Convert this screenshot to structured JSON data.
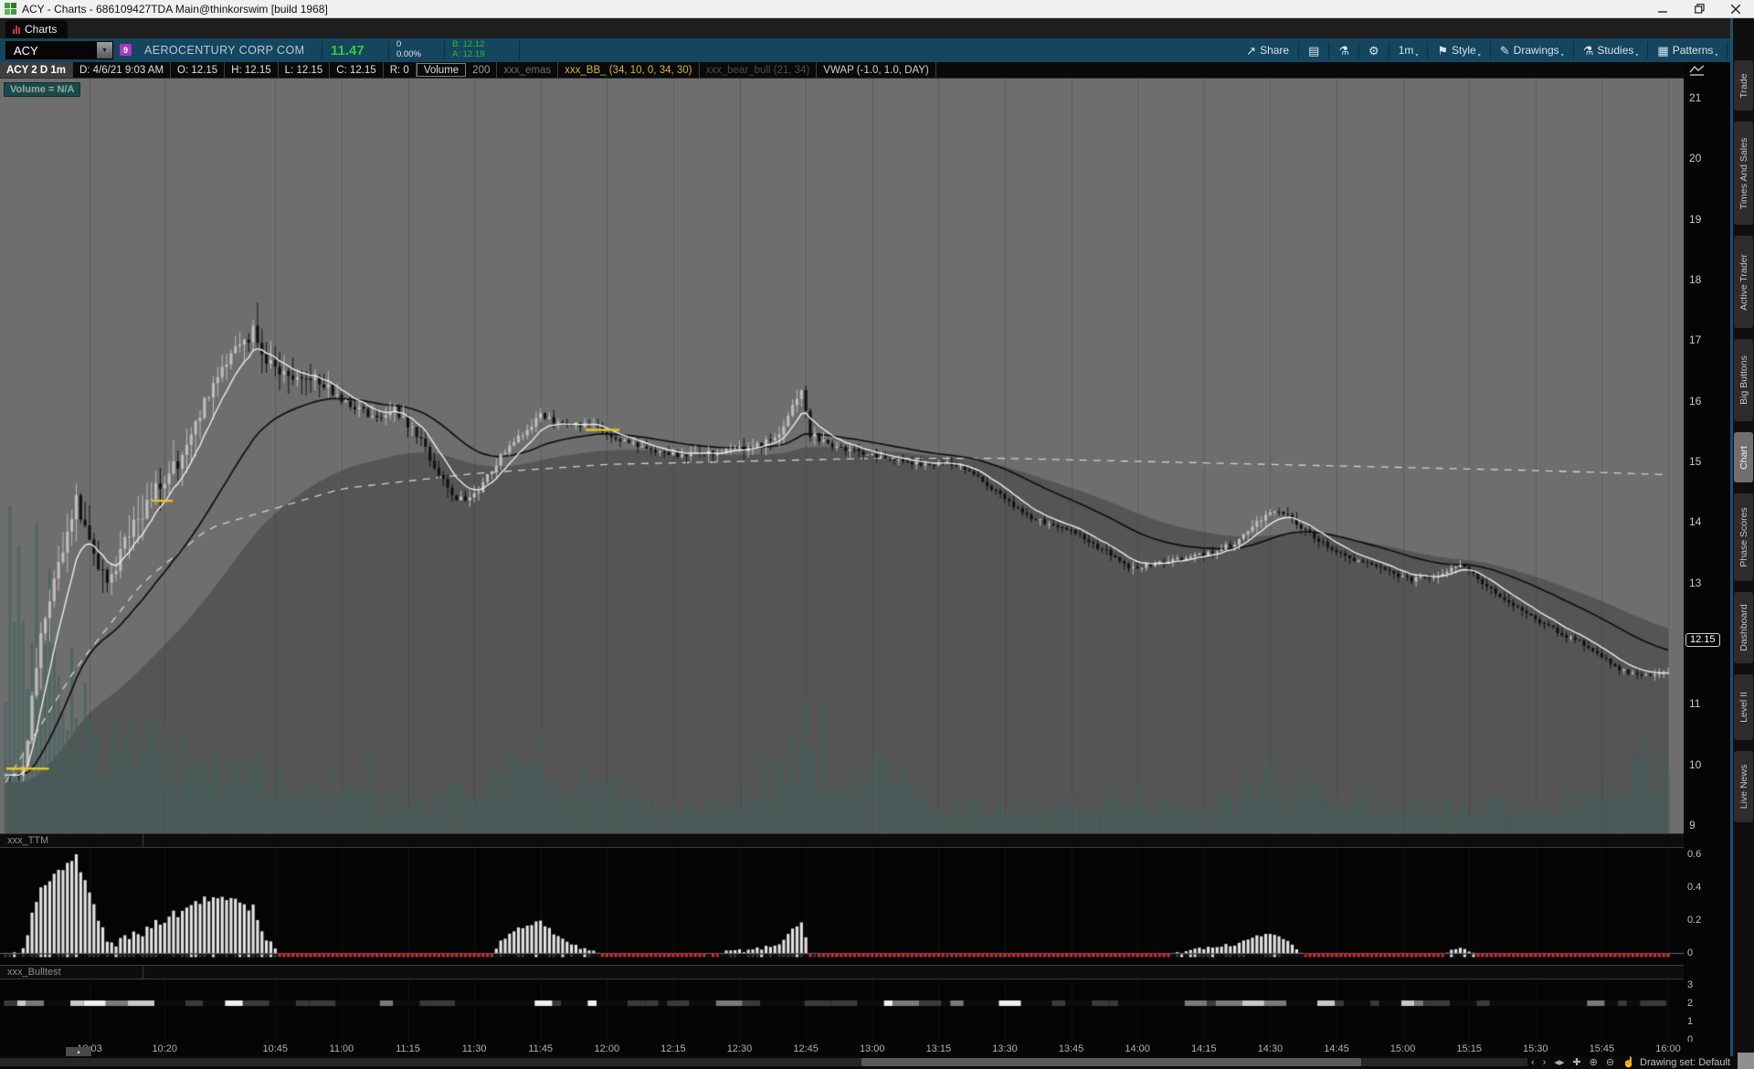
{
  "window": {
    "title": "ACY - Charts - 686109427TDA Main@thinkorswim [build 1968]"
  },
  "tab_bar": {
    "active_tab": "Charts"
  },
  "toolbar": {
    "symbol": "ACY",
    "symbol_badge": "9",
    "company": "AEROCENTURY CORP COM",
    "last_price": "11.47",
    "change": "0",
    "change_percent": "0.00%",
    "bid": "B: 12.12",
    "ask": "A: 12.19",
    "buttons": [
      {
        "name": "share-button",
        "icon": "↗",
        "label": "Share",
        "caret": false
      },
      {
        "name": "monitor-note-button",
        "icon": "▤",
        "label": "",
        "caret": false
      },
      {
        "name": "quick-study-button",
        "icon": "⚗",
        "label": "",
        "caret": false
      },
      {
        "name": "chart-settings-button",
        "icon": "⚙",
        "label": "",
        "caret": false
      },
      {
        "name": "timeframe-button",
        "icon": "",
        "label": "1m",
        "caret": true
      },
      {
        "name": "style-button",
        "icon": "⚑",
        "label": "Style",
        "caret": true
      },
      {
        "name": "drawings-button",
        "icon": "✎",
        "label": "Drawings",
        "caret": true
      },
      {
        "name": "studies-button",
        "icon": "⚗",
        "label": "Studies",
        "caret": true
      },
      {
        "name": "patterns-button",
        "icon": "▦",
        "label": "Patterns",
        "caret": true
      },
      {
        "name": "chart-grid-menu-button",
        "icon": "≡",
        "label": "",
        "caret": false
      }
    ]
  },
  "ohlc_bar": {
    "cells": [
      {
        "text": "ACY 2 D 1m",
        "style": "title"
      },
      {
        "text": "D: 4/6/21 9:03 AM",
        "style": ""
      },
      {
        "text": "O: 12.15",
        "style": ""
      },
      {
        "text": "H: 12.15",
        "style": ""
      },
      {
        "text": "L: 12.15",
        "style": ""
      },
      {
        "text": "C: 12.15",
        "style": ""
      },
      {
        "text": "R: 0",
        "style": ""
      },
      {
        "text": "Volume",
        "style": "box"
      },
      {
        "text": "200",
        "style": "dim"
      },
      {
        "text": "xxx_emas",
        "style": "faint"
      },
      {
        "text": "xxx_BB_ (34, 10, 0, 34, 30)",
        "style": "yellow"
      },
      {
        "text": "xxx_bear_bull (21, 34)",
        "style": "ghost"
      },
      {
        "text": "VWAP (-1.0, 1.0, DAY)",
        "style": "light"
      }
    ]
  },
  "chart": {
    "volume_badge": "Volume = N/A",
    "last_price_label": "12.15"
  },
  "panels": {
    "ttm": {
      "label": "xxx_TTM"
    },
    "bulltest": {
      "label": "xxx_Bulltest"
    }
  },
  "sidebar": {
    "tabs": [
      "Trade",
      "Times And Sales",
      "Active Trader",
      "Big Buttons",
      "Chart",
      "Phase Scores",
      "Dashboard",
      "Level II",
      "Live News"
    ],
    "active": "Chart"
  },
  "status_bar": {
    "drawing_set": "Drawing set: Default",
    "controls": [
      {
        "name": "pan-left-button",
        "glyph": "‹"
      },
      {
        "name": "pan-right-button",
        "glyph": "›"
      },
      {
        "name": "auto-scroll-button",
        "glyph": "◂▸"
      },
      {
        "name": "crosshair-button",
        "glyph": "✚"
      },
      {
        "name": "zoom-in-button",
        "glyph": "⊕"
      },
      {
        "name": "zoom-out-button",
        "glyph": "⊖"
      },
      {
        "name": "cursor-mode-button",
        "glyph": "☝"
      }
    ]
  },
  "colors": {
    "toolbar_bg": "#15455f",
    "quote_green": "#33cc33",
    "bb_yellow": "#d9b13b",
    "chart_bg": "#6e6e6e",
    "volume_teal": "#3e625c",
    "marker_yellow": "#e8c422",
    "ttm_red": "#b83232",
    "tab_icon_red": "#c43c3c",
    "cloud_shade": "rgba(0,0,0,0.22)",
    "ema_fast": "#ededed",
    "ema_slow": "#0f0f0f",
    "vwap_dash": "#d2d2d2",
    "candle_up": "#bdbdbd",
    "candle_down": "#121212",
    "hist_bar": "#e2e2e2"
  },
  "chart_data": {
    "type": "candlestick",
    "title": "ACY 2 D 1m",
    "date": "4/6/21",
    "price_axis_ticks": [
      21,
      20,
      19,
      18,
      17,
      16,
      15,
      14,
      13,
      12,
      11,
      10,
      9
    ],
    "time_ticks": [
      "10:03",
      "10:20",
      "10:45",
      "11:00",
      "11:15",
      "11:30",
      "11:45",
      "12:00",
      "12:15",
      "12:30",
      "12:45",
      "13:00",
      "13:15",
      "13:30",
      "13:45",
      "14:00",
      "14:15",
      "14:30",
      "14:45",
      "15:00",
      "15:15",
      "15:30",
      "15:45",
      "16:00"
    ],
    "session": {
      "start": "09:44",
      "end": "16:00"
    },
    "last_price": 12.15,
    "price_anchors": [
      [
        "09:44",
        9.82
      ],
      [
        "09:48",
        9.9
      ],
      [
        "09:52",
        12.2
      ],
      [
        "09:57",
        13.6
      ],
      [
        "10:00",
        14.35
      ],
      [
        "10:03",
        13.6
      ],
      [
        "10:07",
        13.0
      ],
      [
        "10:12",
        13.8
      ],
      [
        "10:18",
        14.5
      ],
      [
        "10:24",
        15.1
      ],
      [
        "10:30",
        16.1
      ],
      [
        "10:36",
        16.9
      ],
      [
        "10:40",
        17.15
      ],
      [
        "10:44",
        16.6
      ],
      [
        "10:50",
        16.35
      ],
      [
        "10:56",
        16.3
      ],
      [
        "11:02",
        15.9
      ],
      [
        "11:08",
        15.75
      ],
      [
        "11:12",
        15.85
      ],
      [
        "11:17",
        15.45
      ],
      [
        "11:22",
        14.8
      ],
      [
        "11:26",
        14.35
      ],
      [
        "11:31",
        14.5
      ],
      [
        "11:36",
        15.1
      ],
      [
        "11:41",
        15.45
      ],
      [
        "11:45",
        15.75
      ],
      [
        "11:50",
        15.6
      ],
      [
        "11:57",
        15.6
      ],
      [
        "12:03",
        15.35
      ],
      [
        "12:10",
        15.2
      ],
      [
        "12:17",
        15.1
      ],
      [
        "12:24",
        15.15
      ],
      [
        "12:31",
        15.2
      ],
      [
        "12:38",
        15.35
      ],
      [
        "12:44",
        16.2
      ],
      [
        "12:46",
        15.45
      ],
      [
        "12:52",
        15.25
      ],
      [
        "13:00",
        15.1
      ],
      [
        "13:06",
        15.0
      ],
      [
        "13:12",
        14.95
      ],
      [
        "13:17",
        15.0
      ],
      [
        "13:23",
        14.8
      ],
      [
        "13:29",
        14.45
      ],
      [
        "13:35",
        14.1
      ],
      [
        "13:41",
        13.95
      ],
      [
        "13:46",
        13.8
      ],
      [
        "13:52",
        13.55
      ],
      [
        "13:58",
        13.25
      ],
      [
        "14:04",
        13.3
      ],
      [
        "14:10",
        13.4
      ],
      [
        "14:16",
        13.5
      ],
      [
        "14:22",
        13.65
      ],
      [
        "14:28",
        14.05
      ],
      [
        "14:32",
        14.2
      ],
      [
        "14:38",
        13.85
      ],
      [
        "14:44",
        13.55
      ],
      [
        "14:50",
        13.35
      ],
      [
        "14:56",
        13.2
      ],
      [
        "15:02",
        13.05
      ],
      [
        "15:08",
        13.1
      ],
      [
        "15:13",
        13.3
      ],
      [
        "15:18",
        13.0
      ],
      [
        "15:24",
        12.65
      ],
      [
        "15:30",
        12.4
      ],
      [
        "15:36",
        12.15
      ],
      [
        "15:42",
        11.95
      ],
      [
        "15:48",
        11.6
      ],
      [
        "15:54",
        11.45
      ],
      [
        "16:00",
        11.5
      ]
    ],
    "volume_anchors": [
      [
        "09:44",
        0.95
      ],
      [
        "09:50",
        1.0
      ],
      [
        "09:56",
        0.7
      ],
      [
        "10:02",
        0.5
      ],
      [
        "10:10",
        0.38
      ],
      [
        "10:20",
        0.32
      ],
      [
        "10:30",
        0.3
      ],
      [
        "10:40",
        0.28
      ],
      [
        "10:50",
        0.22
      ],
      [
        "11:00",
        0.18
      ],
      [
        "11:10",
        0.13
      ],
      [
        "11:20",
        0.12
      ],
      [
        "11:30",
        0.2
      ],
      [
        "11:40",
        0.28
      ],
      [
        "11:50",
        0.18
      ],
      [
        "12:00",
        0.24
      ],
      [
        "12:10",
        0.12
      ],
      [
        "12:20",
        0.1
      ],
      [
        "12:30",
        0.14
      ],
      [
        "12:44",
        0.3
      ],
      [
        "12:52",
        0.16
      ],
      [
        "13:04",
        0.28
      ],
      [
        "13:15",
        0.12
      ],
      [
        "13:30",
        0.1
      ],
      [
        "13:45",
        0.12
      ],
      [
        "14:00",
        0.14
      ],
      [
        "14:15",
        0.1
      ],
      [
        "14:30",
        0.24
      ],
      [
        "14:45",
        0.12
      ],
      [
        "15:00",
        0.1
      ],
      [
        "15:15",
        0.12
      ],
      [
        "15:30",
        0.14
      ],
      [
        "15:45",
        0.18
      ],
      [
        "15:55",
        0.3
      ],
      [
        "16:00",
        0.26
      ]
    ],
    "volatility_anchors": [
      [
        "09:44",
        0.06
      ],
      [
        "09:50",
        0.3
      ],
      [
        "10:00",
        0.3
      ],
      [
        "10:40",
        0.32
      ],
      [
        "11:00",
        0.16
      ],
      [
        "11:30",
        0.12
      ],
      [
        "12:00",
        0.08
      ],
      [
        "12:44",
        0.14
      ],
      [
        "13:00",
        0.07
      ],
      [
        "13:40",
        0.08
      ],
      [
        "14:30",
        0.09
      ],
      [
        "15:30",
        0.08
      ],
      [
        "16:00",
        0.07
      ]
    ],
    "vwap_band_anchors": [
      [
        "09:44",
        9.7
      ],
      [
        "10:00",
        11.6
      ],
      [
        "10:15",
        13.0
      ],
      [
        "10:30",
        13.9
      ],
      [
        "11:00",
        14.55
      ],
      [
        "11:30",
        14.8
      ],
      [
        "12:00",
        14.95
      ],
      [
        "12:30",
        15.0
      ],
      [
        "13:00",
        15.05
      ],
      [
        "13:30",
        15.05
      ],
      [
        "14:00",
        15.0
      ],
      [
        "14:30",
        14.95
      ],
      [
        "15:00",
        14.9
      ],
      [
        "15:30",
        14.85
      ],
      [
        "16:00",
        14.78
      ]
    ],
    "markers": [
      {
        "time": "09:45",
        "price": 9.93,
        "width_min": 8
      },
      {
        "time": "10:18",
        "price": 14.35,
        "width_min": 3
      },
      {
        "time": "11:56",
        "price": 15.52,
        "width_min": 6
      }
    ],
    "overlays": {
      "ema_fast": 8,
      "ema_slow": 34,
      "cloud_ema": 70,
      "cloud_offset": 0.12
    },
    "ttm_panel": {
      "ticks": [
        0.6,
        0.4,
        0.2,
        0
      ],
      "scale": 0.24,
      "clip_max": 0.6,
      "sma_len": 21
    },
    "bulltest_panel": {
      "ticks": [
        3,
        2,
        1,
        0
      ],
      "level": 2
    }
  }
}
